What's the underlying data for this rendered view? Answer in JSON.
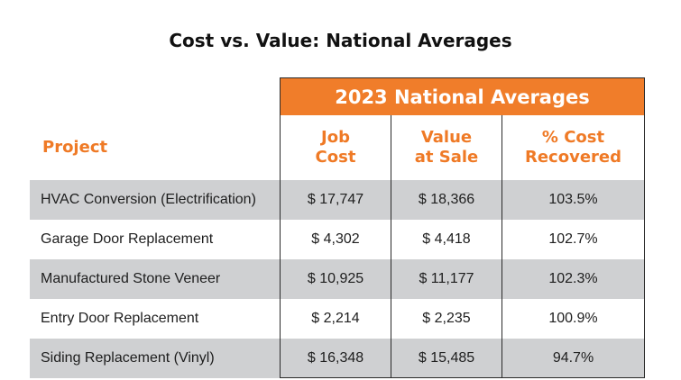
{
  "chart_data": {
    "type": "table",
    "title": "Cost vs. Value: National Averages",
    "group_header": "2023 National Averages",
    "columns": [
      "Project",
      "Job\nCost",
      "Value\nat Sale",
      "% Cost\nRecovered"
    ],
    "rows": [
      [
        "HVAC Conversion (Electrification)",
        "$ 17,747",
        "$ 18,366",
        "103.5%"
      ],
      [
        "Garage Door Replacement",
        "$ 4,302",
        "$ 4,418",
        "102.7%"
      ],
      [
        "Manufactured Stone Veneer",
        "$ 10,925",
        "$ 11,177",
        "102.3%"
      ],
      [
        "Entry Door Replacement",
        "$ 2,214",
        "$ 2,235",
        "100.9%"
      ],
      [
        "Siding Replacement (Vinyl)",
        "$ 16,348",
        "$ 15,485",
        "94.7%"
      ]
    ],
    "colors": {
      "accent": "#f07d2a",
      "row_shade": "#cfd0d2"
    }
  }
}
